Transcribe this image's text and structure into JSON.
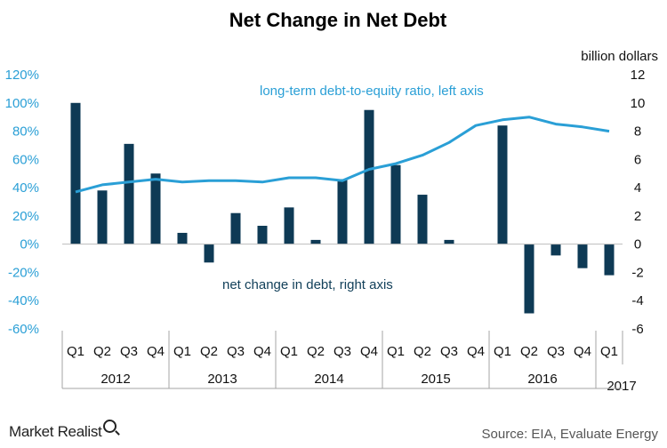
{
  "brand": {
    "name": "Market Realist",
    "icon": "magnifier-icon"
  },
  "source_text": "Source: EIA, Evaluate Energy",
  "colors": {
    "bar": "#0e3a55",
    "line": "#2a9fd6",
    "left_axis_text": "#2a9fd6",
    "grid": "#d9d9d9"
  },
  "chart_data": {
    "type": "bar",
    "title": "Net Change in Net Debt",
    "right_axis_unit": "billion dollars",
    "annotations": {
      "line": "long-term debt-to-equity ratio, left axis",
      "bars": "net change in debt, right axis"
    },
    "categories": [
      "Q1",
      "Q2",
      "Q3",
      "Q4",
      "Q1",
      "Q2",
      "Q3",
      "Q4",
      "Q1",
      "Q2",
      "Q3",
      "Q4",
      "Q1",
      "Q2",
      "Q3",
      "Q4",
      "Q1",
      "Q2",
      "Q3",
      "Q4",
      "Q1"
    ],
    "years": [
      {
        "label": "2012",
        "start": 0,
        "count": 4
      },
      {
        "label": "2013",
        "start": 4,
        "count": 4
      },
      {
        "label": "2014",
        "start": 8,
        "count": 4
      },
      {
        "label": "2015",
        "start": 12,
        "count": 4
      },
      {
        "label": "2016",
        "start": 16,
        "count": 4
      },
      {
        "label": "2017",
        "start": 20,
        "count": 1
      }
    ],
    "series": [
      {
        "name": "net change in debt, right axis",
        "type": "bar",
        "axis": "right",
        "values": [
          10.0,
          3.8,
          7.1,
          5.0,
          0.8,
          -1.3,
          2.2,
          1.3,
          2.6,
          0.3,
          4.6,
          9.5,
          5.6,
          3.5,
          0.3,
          0.0,
          8.4,
          -4.9,
          -0.8,
          -1.7,
          -2.2
        ]
      },
      {
        "name": "long-term debt-to-equity ratio, left axis",
        "type": "line",
        "axis": "left",
        "values": [
          37,
          42,
          44,
          46,
          44,
          45,
          45,
          44,
          47,
          47,
          45,
          53,
          57,
          63,
          72,
          84,
          88,
          90,
          85,
          83,
          80
        ]
      }
    ],
    "left_axis": {
      "min": -60,
      "max": 120,
      "step": 20,
      "ticks": [
        "-60%",
        "-40%",
        "-20%",
        "0%",
        "20%",
        "40%",
        "60%",
        "80%",
        "100%",
        "120%"
      ]
    },
    "right_axis": {
      "min": -6,
      "max": 12,
      "step": 2,
      "ticks": [
        "-6",
        "-4",
        "-2",
        "0",
        "2",
        "4",
        "6",
        "8",
        "10",
        "12"
      ]
    },
    "grid": false,
    "legend": "none"
  }
}
